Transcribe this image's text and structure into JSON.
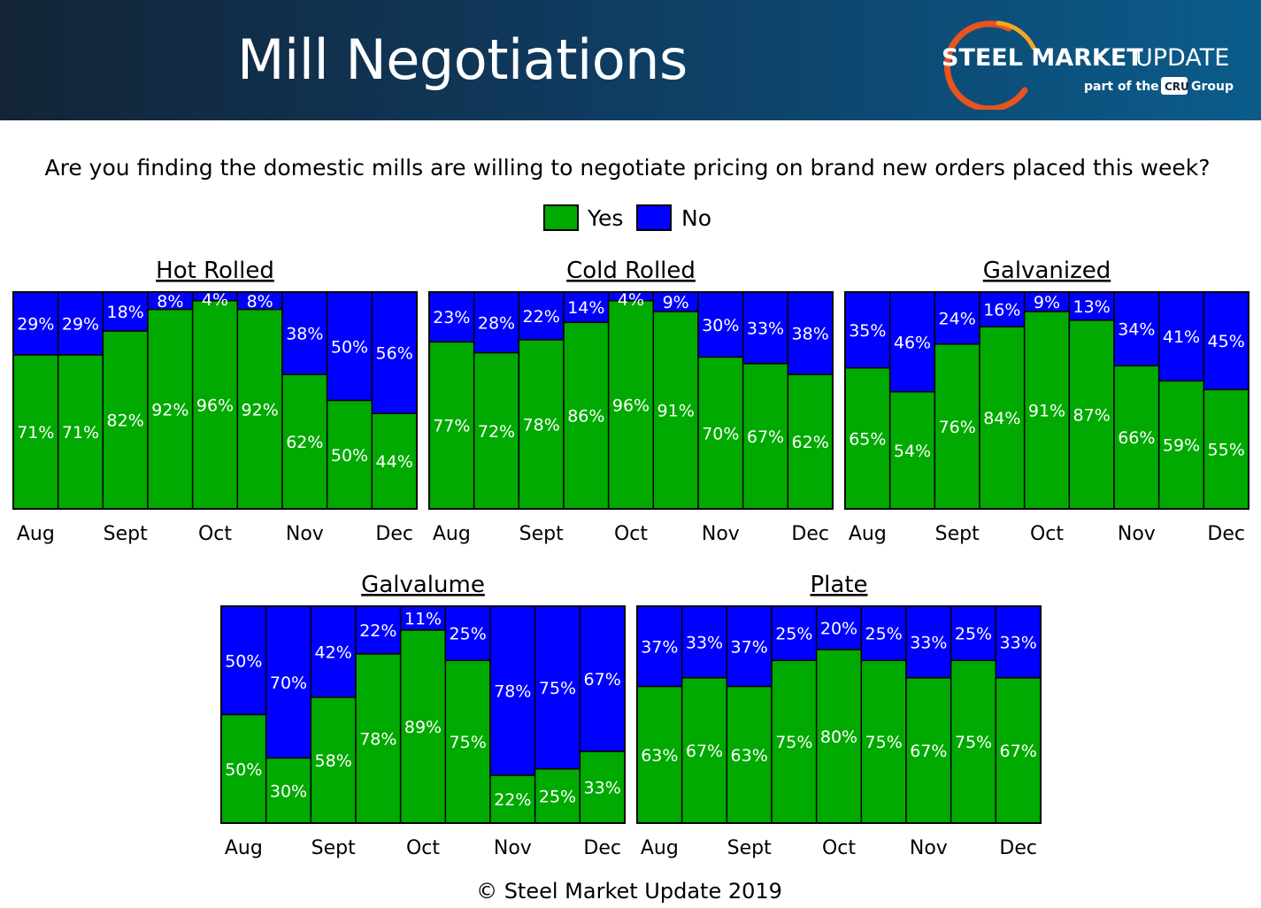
{
  "header": {
    "title": "Mill Negotiations"
  },
  "logo": {
    "brand_bold": "STEEL MARKET",
    "brand_light": "UPDATE",
    "tag_prefix": "part of the",
    "tag_box": "CRU",
    "tag_suffix": "Group"
  },
  "question": "Are you finding the domestic mills are willing to negotiate pricing on brand new orders placed this week?",
  "legend": {
    "yes_label": "Yes",
    "no_label": "No"
  },
  "colors": {
    "yes": "#00aa00",
    "no": "#0000ff",
    "header_dark": "#132437",
    "header_light": "#0b5c8b",
    "logo_orange": "#e8531e"
  },
  "footer": "© Steel Market Update 2019",
  "chart_data": [
    {
      "type": "bar",
      "stacked": true,
      "title": "Hot Rolled",
      "series": [
        {
          "name": "Yes",
          "values": [
            "71%",
            "71%",
            "82%",
            "92%",
            "96%",
            "92%",
            "62%",
            "50%",
            "44%"
          ]
        },
        {
          "name": "No",
          "values": [
            "29%",
            "29%",
            "18%",
            "8%",
            "4%",
            "8%",
            "38%",
            "50%",
            "56%"
          ]
        }
      ],
      "month_labels": [
        "Aug",
        "Sept",
        "Oct",
        "Nov",
        "Dec"
      ],
      "ylim": [
        0,
        100
      ]
    },
    {
      "type": "bar",
      "stacked": true,
      "title": "Cold Rolled",
      "series": [
        {
          "name": "Yes",
          "values": [
            "77%",
            "72%",
            "78%",
            "86%",
            "96%",
            "91%",
            "70%",
            "67%",
            "62%"
          ]
        },
        {
          "name": "No",
          "values": [
            "23%",
            "28%",
            "22%",
            "14%",
            "4%",
            "9%",
            "30%",
            "33%",
            "38%"
          ]
        }
      ],
      "month_labels": [
        "Aug",
        "Sept",
        "Oct",
        "Nov",
        "Dec"
      ],
      "ylim": [
        0,
        100
      ]
    },
    {
      "type": "bar",
      "stacked": true,
      "title": "Galvanized",
      "series": [
        {
          "name": "Yes",
          "values": [
            "65%",
            "54%",
            "76%",
            "84%",
            "91%",
            "87%",
            "66%",
            "59%",
            "55%"
          ]
        },
        {
          "name": "No",
          "values": [
            "35%",
            "46%",
            "24%",
            "16%",
            "9%",
            "13%",
            "34%",
            "41%",
            "45%"
          ]
        }
      ],
      "month_labels": [
        "Aug",
        "Sept",
        "Oct",
        "Nov",
        "Dec"
      ],
      "ylim": [
        0,
        100
      ]
    },
    {
      "type": "bar",
      "stacked": true,
      "title": "Galvalume",
      "series": [
        {
          "name": "Yes",
          "values": [
            "50%",
            "30%",
            "58%",
            "78%",
            "89%",
            "75%",
            "22%",
            "25%",
            "33%"
          ]
        },
        {
          "name": "No",
          "values": [
            "50%",
            "70%",
            "42%",
            "22%",
            "11%",
            "25%",
            "78%",
            "75%",
            "67%"
          ]
        }
      ],
      "month_labels": [
        "Aug",
        "Sept",
        "Oct",
        "Nov",
        "Dec"
      ],
      "ylim": [
        0,
        100
      ]
    },
    {
      "type": "bar",
      "stacked": true,
      "title": "Plate",
      "series": [
        {
          "name": "Yes",
          "values": [
            "63%",
            "67%",
            "63%",
            "75%",
            "80%",
            "75%",
            "67%",
            "75%",
            "67%"
          ]
        },
        {
          "name": "No",
          "values": [
            "37%",
            "33%",
            "37%",
            "25%",
            "20%",
            "25%",
            "33%",
            "25%",
            "33%"
          ]
        }
      ],
      "month_labels": [
        "Aug",
        "Sept",
        "Oct",
        "Nov",
        "Dec"
      ],
      "ylim": [
        0,
        100
      ]
    }
  ]
}
